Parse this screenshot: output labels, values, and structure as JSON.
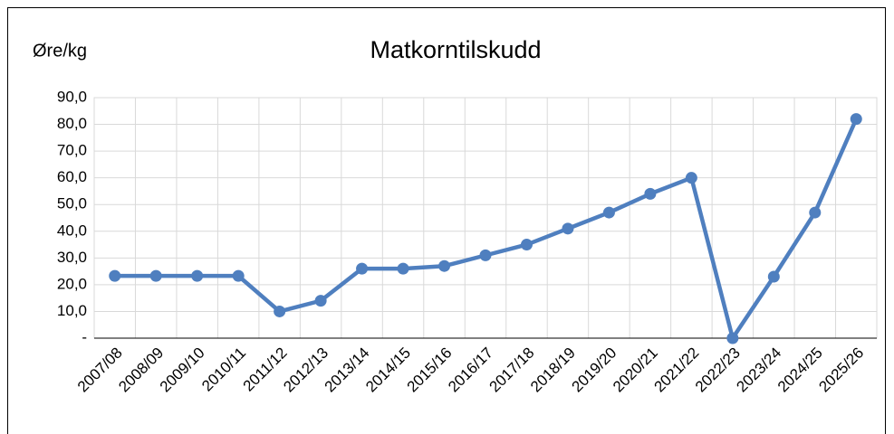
{
  "chart_data": {
    "type": "line",
    "title": "Matkorntilskudd",
    "y_label": "Øre/kg",
    "categories": [
      "2007/08",
      "2008/09",
      "2009/10",
      "2010/11",
      "2011/12",
      "2012/13",
      "2013/14",
      "2014/15",
      "2015/16",
      "2016/17",
      "2017/18",
      "2018/19",
      "2019/20",
      "2020/21",
      "2021/22",
      "2022/23",
      "2023/24",
      "2024/25",
      "2025/26"
    ],
    "values": [
      23.3,
      23.3,
      23.3,
      23.3,
      10,
      14,
      26,
      26,
      27,
      31,
      35,
      41,
      47,
      54,
      60,
      0,
      23,
      47,
      82
    ],
    "color": "#4f7fbf",
    "ylim": [
      0,
      90
    ],
    "yticks": [
      {
        "value": 0,
        "label": "-"
      },
      {
        "value": 10,
        "label": "10,0"
      },
      {
        "value": 20,
        "label": "20,0"
      },
      {
        "value": 30,
        "label": "30,0"
      },
      {
        "value": 40,
        "label": "40,0"
      },
      {
        "value": 50,
        "label": "50,0"
      },
      {
        "value": 60,
        "label": "60,0"
      },
      {
        "value": 70,
        "label": "70,0"
      },
      {
        "value": 80,
        "label": "80,0"
      },
      {
        "value": 90,
        "label": "90,0"
      }
    ],
    "grid": true
  }
}
